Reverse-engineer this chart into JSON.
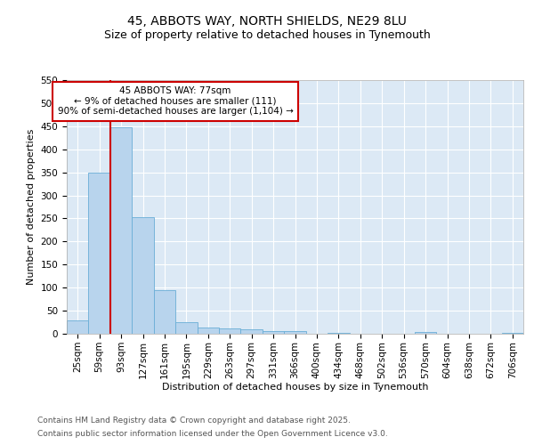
{
  "title_line1": "45, ABBOTS WAY, NORTH SHIELDS, NE29 8LU",
  "title_line2": "Size of property relative to detached houses in Tynemouth",
  "xlabel": "Distribution of detached houses by size in Tynemouth",
  "ylabel": "Number of detached properties",
  "categories": [
    "25sqm",
    "59sqm",
    "93sqm",
    "127sqm",
    "161sqm",
    "195sqm",
    "229sqm",
    "263sqm",
    "297sqm",
    "331sqm",
    "366sqm",
    "400sqm",
    "434sqm",
    "468sqm",
    "502sqm",
    "536sqm",
    "570sqm",
    "604sqm",
    "638sqm",
    "672sqm",
    "706sqm"
  ],
  "values": [
    28,
    350,
    447,
    252,
    95,
    25,
    13,
    12,
    9,
    5,
    5,
    0,
    2,
    0,
    0,
    0,
    3,
    0,
    0,
    0,
    2
  ],
  "bar_color": "#b8d4ed",
  "bar_edge_color": "#6aaed6",
  "vline_x": 1.5,
  "marker_label_line1": "45 ABBOTS WAY: 77sqm",
  "marker_label_line2": "← 9% of detached houses are smaller (111)",
  "marker_label_line3": "90% of semi-detached houses are larger (1,104) →",
  "annotation_box_color": "#cc0000",
  "vline_color": "#cc0000",
  "ylim_max": 550,
  "yticks": [
    0,
    50,
    100,
    150,
    200,
    250,
    300,
    350,
    400,
    450,
    500,
    550
  ],
  "background_color": "#dce9f5",
  "grid_color": "#ffffff",
  "fig_background": "#ffffff",
  "footer_line1": "Contains HM Land Registry data © Crown copyright and database right 2025.",
  "footer_line2": "Contains public sector information licensed under the Open Government Licence v3.0.",
  "title_fontsize": 10,
  "subtitle_fontsize": 9,
  "axis_label_fontsize": 8,
  "tick_fontsize": 7.5,
  "footer_fontsize": 6.5,
  "annotation_fontsize": 7.5
}
